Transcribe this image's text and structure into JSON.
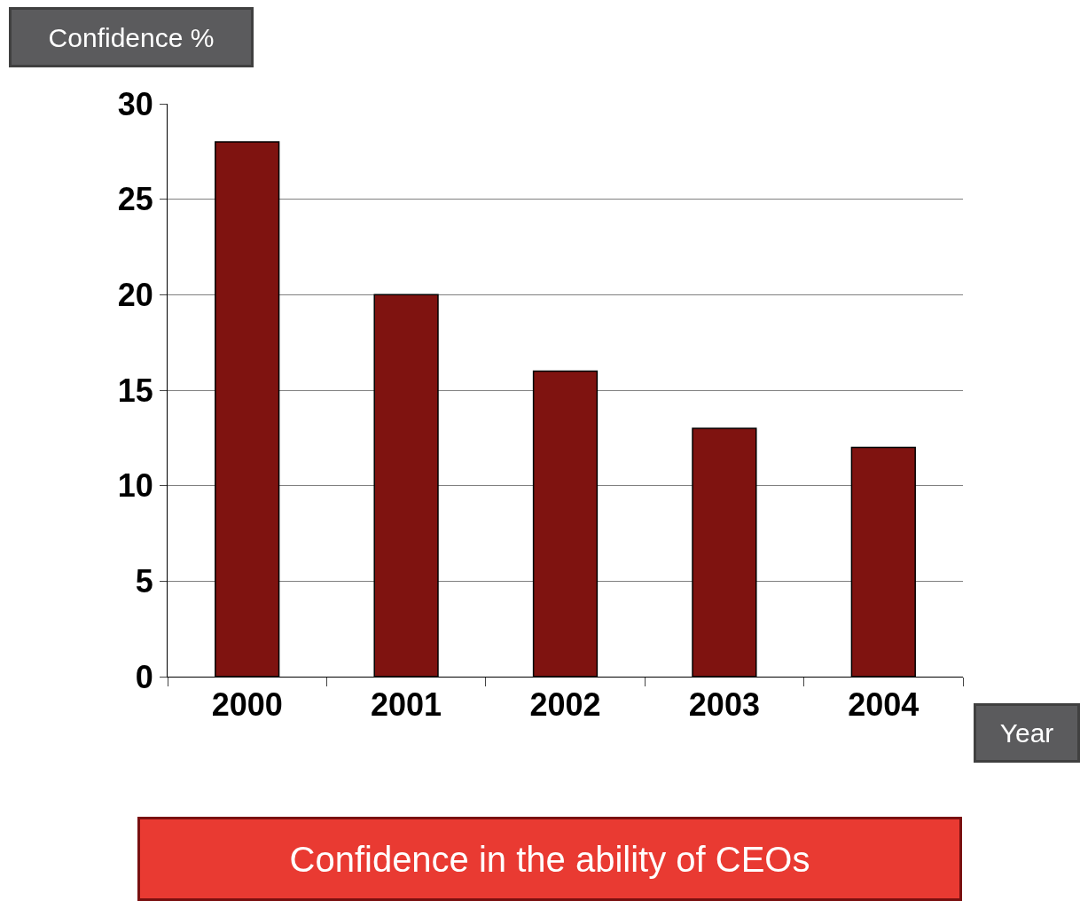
{
  "chart_data": {
    "type": "bar",
    "title": "Confidence in the ability of CEOs",
    "xlabel": "Year",
    "ylabel": "Confidence %",
    "categories": [
      "2000",
      "2001",
      "2002",
      "2003",
      "2004"
    ],
    "values": [
      28,
      20,
      16,
      13,
      12
    ],
    "color": "#7f1310",
    "ylim": [
      0,
      30
    ],
    "yticks": [
      0,
      5,
      10,
      15,
      20,
      25,
      30
    ],
    "grid": "y"
  }
}
